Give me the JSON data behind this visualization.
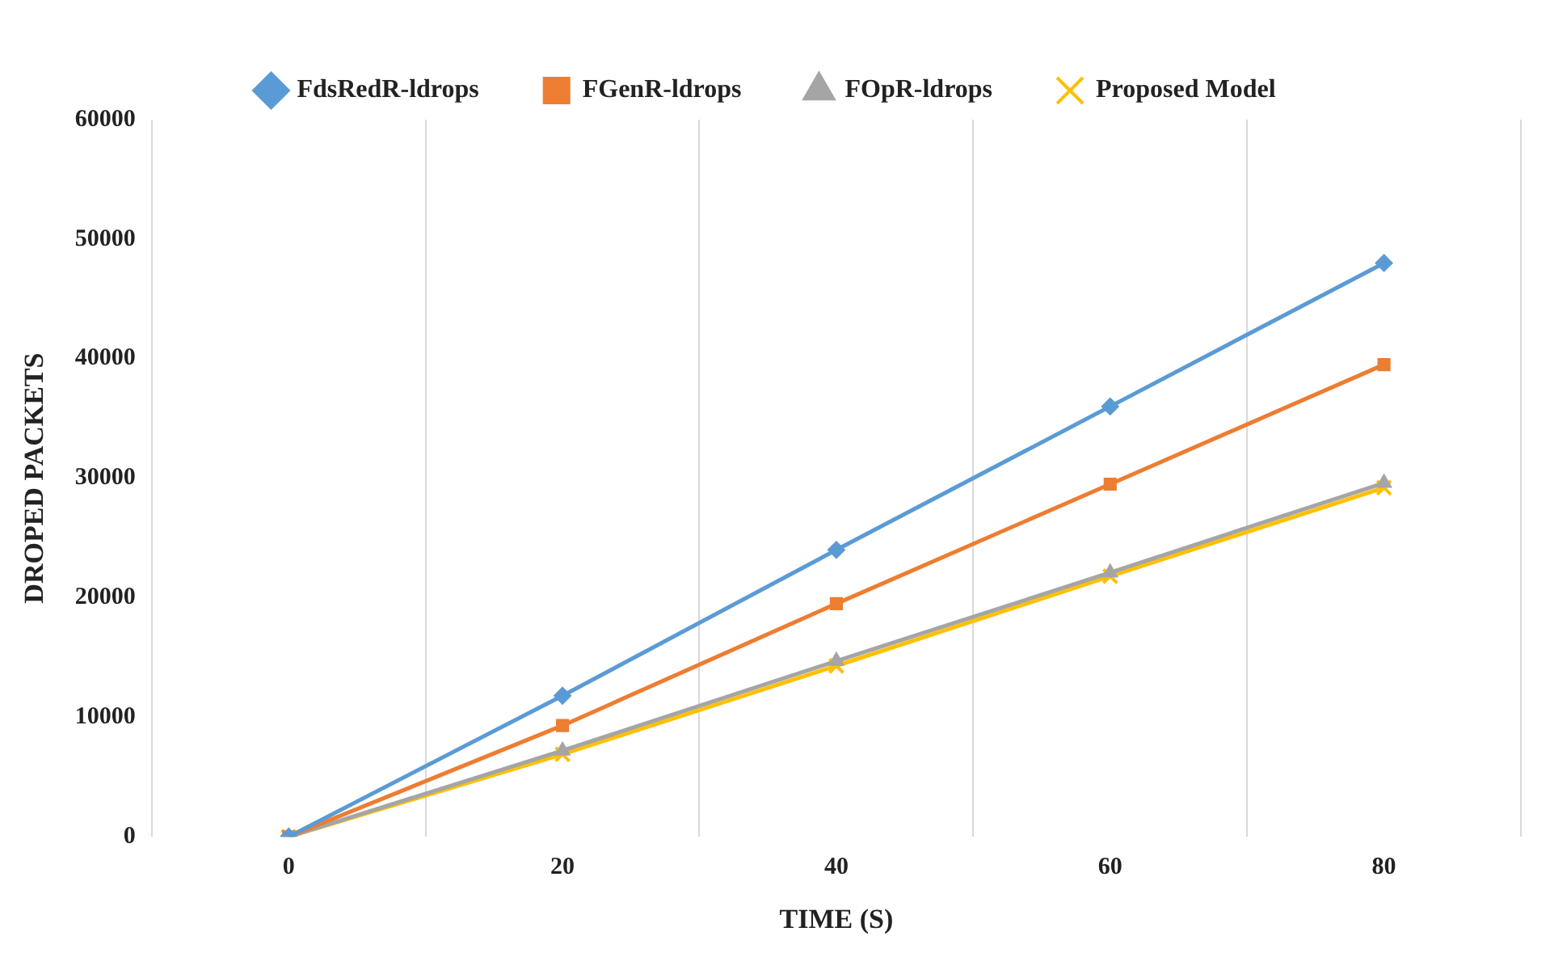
{
  "chart_data": {
    "type": "line",
    "xlabel": "TIME (S)",
    "ylabel": "DROPED PACKETS",
    "categories": [
      "0",
      "20",
      "40",
      "60",
      "80"
    ],
    "series": [
      {
        "name": "FdsRedR-ldrops",
        "color": "#5b9bd5",
        "marker": "diamond",
        "values": [
          0,
          11800,
          24000,
          36000,
          48000
        ]
      },
      {
        "name": "FGenR-ldrops",
        "color": "#ed7d31",
        "marker": "square",
        "values": [
          0,
          9300,
          19500,
          29500,
          39500
        ]
      },
      {
        "name": "FOpR-ldrops",
        "color": "#a5a5a5",
        "marker": "triangle",
        "values": [
          0,
          7200,
          14700,
          22100,
          29600
        ]
      },
      {
        "name": "Proposed Model",
        "color": "#ffc000",
        "marker": "cross",
        "values": [
          0,
          6900,
          14300,
          21800,
          29200
        ]
      }
    ],
    "ylim": [
      0,
      60000
    ],
    "yticks": [
      0,
      10000,
      20000,
      30000,
      40000,
      50000,
      60000
    ],
    "grid": "x",
    "legend": "top",
    "line_style": "solid"
  }
}
